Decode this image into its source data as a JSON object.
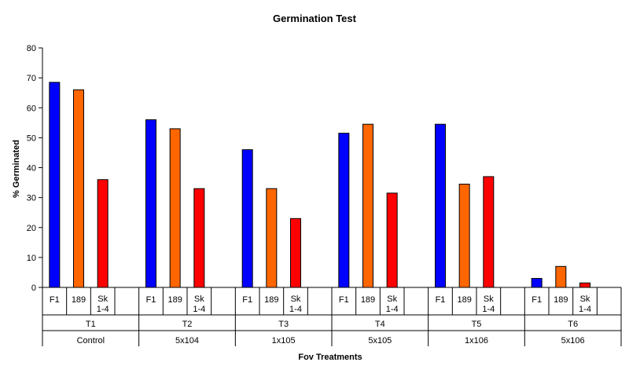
{
  "chart_data": {
    "type": "bar",
    "title": "Germination Test",
    "xlabel": "Fov Treatments",
    "ylabel": "% Germinated",
    "ylim": [
      0,
      80
    ],
    "yticks": [
      0,
      10,
      20,
      30,
      40,
      50,
      60,
      70,
      80
    ],
    "grid": false,
    "legend": "none",
    "groups": [
      {
        "treatment": "T1",
        "dose": "Control",
        "isolates": [
          "F1",
          "189",
          "Sk 1-4"
        ],
        "values": [
          68.5,
          66,
          36
        ]
      },
      {
        "treatment": "T2",
        "dose": "5x104",
        "isolates": [
          "F1",
          "189",
          "Sk 1-4"
        ],
        "values": [
          56,
          53,
          33
        ]
      },
      {
        "treatment": "T3",
        "dose": "1x105",
        "isolates": [
          "F1",
          "189",
          "Sk 1-4"
        ],
        "values": [
          46,
          33,
          23
        ]
      },
      {
        "treatment": "T4",
        "dose": "5x105",
        "isolates": [
          "F1",
          "189",
          "Sk 1-4"
        ],
        "values": [
          51.5,
          54.5,
          31.5
        ]
      },
      {
        "treatment": "T5",
        "dose": "1x106",
        "isolates": [
          "F1",
          "189",
          "Sk 1-4"
        ],
        "values": [
          54.5,
          34.5,
          37
        ]
      },
      {
        "treatment": "T6",
        "dose": "5x106",
        "isolates": [
          "F1",
          "189",
          "Sk 1-4"
        ],
        "values": [
          3,
          7,
          1.5
        ]
      }
    ],
    "colors": [
      "#0000ff",
      "#ff6600",
      "#ff0000"
    ]
  }
}
